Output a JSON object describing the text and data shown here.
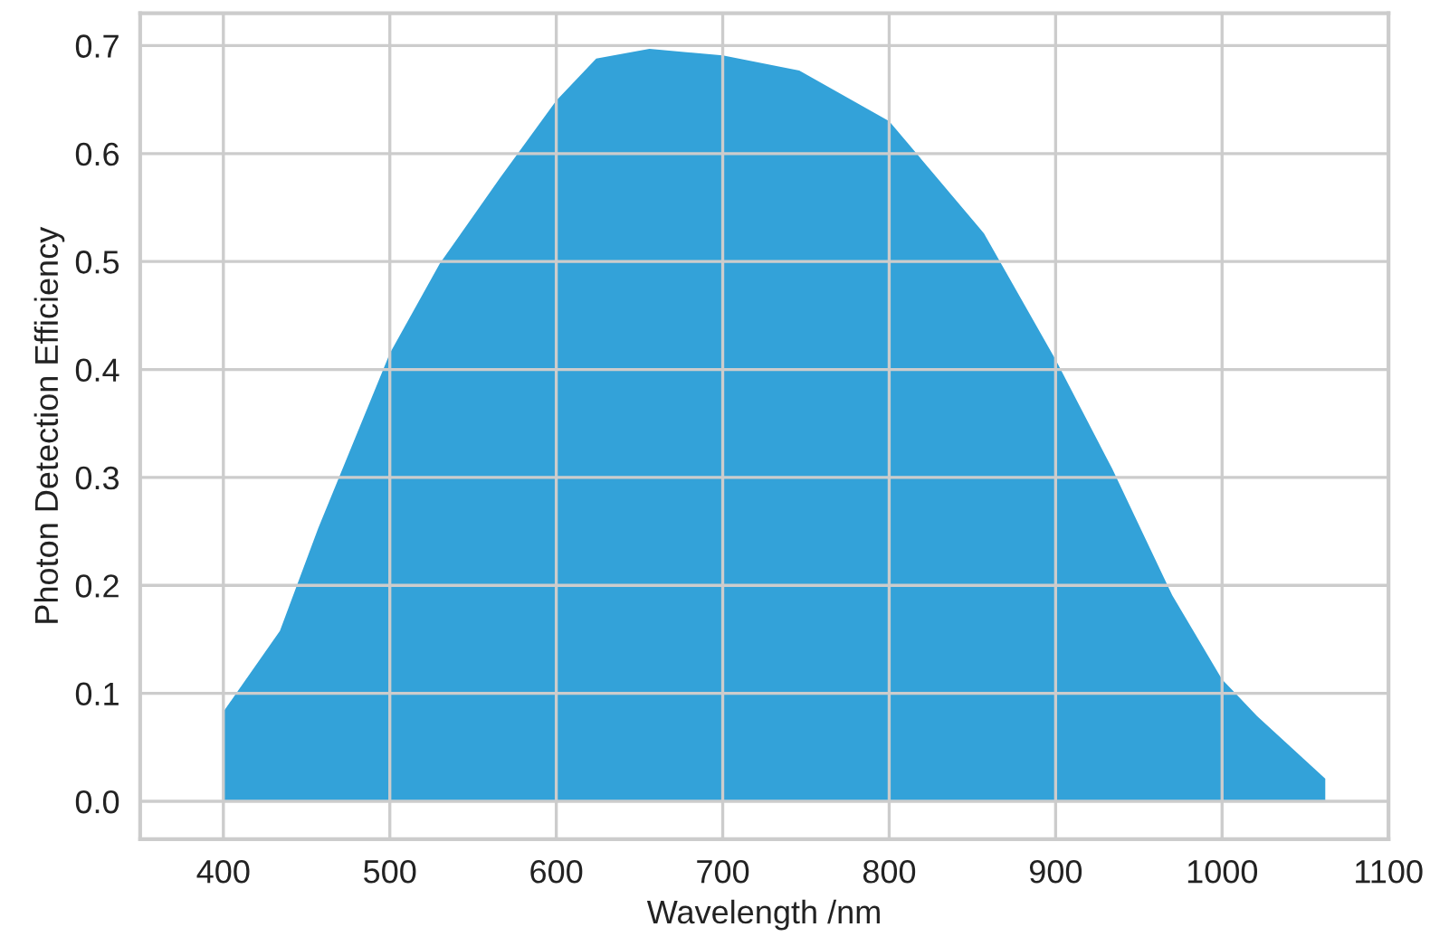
{
  "chart_data": {
    "type": "area",
    "xlabel": "Wavelength /nm",
    "ylabel": "Photon Detection Efficiency",
    "x": [
      400,
      434,
      457,
      500,
      530,
      566,
      600,
      624,
      656,
      700,
      746,
      800,
      857,
      900,
      934,
      970,
      1000,
      1021,
      1062
    ],
    "series": [
      {
        "color": "#33a2d9",
        "values": [
          0.083,
          0.158,
          0.253,
          0.415,
          0.498,
          0.577,
          0.649,
          0.688,
          0.697,
          0.691,
          0.677,
          0.63,
          0.526,
          0.409,
          0.308,
          0.191,
          0.113,
          0.079,
          0.021
        ]
      }
    ],
    "xlim": [
      350,
      1100
    ],
    "ylim": [
      -0.035,
      0.73
    ],
    "xticks": [
      400,
      500,
      600,
      700,
      800,
      900,
      1000,
      1100
    ],
    "yticks": [
      {
        "value": 0,
        "label": "0.0"
      },
      0.1,
      0.2,
      0.3,
      0.4,
      0.5,
      0.6,
      0.7
    ],
    "grid": true,
    "legend": false
  }
}
